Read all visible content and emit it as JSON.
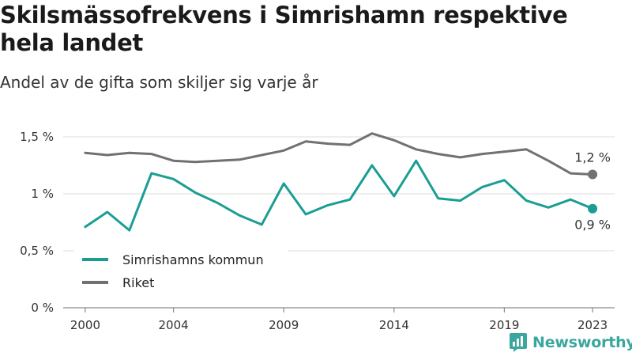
{
  "header": {
    "title": "Skilsmässofrekvens i Simrishamn respektive hela landet",
    "subtitle": "Andel av de gifta som skiljer sig varje år"
  },
  "logo": {
    "text": "Newsworthy",
    "icon": "bar-chart-icon"
  },
  "chart_data": {
    "type": "line",
    "title": "Skilsmässofrekvens i Simrishamn respektive hela landet",
    "subtitle": "Andel av de gifta som skiljer sig varje år",
    "xlabel": "",
    "ylabel": "",
    "x": [
      2000,
      2001,
      2002,
      2003,
      2004,
      2005,
      2006,
      2007,
      2008,
      2009,
      2010,
      2011,
      2012,
      2013,
      2014,
      2015,
      2016,
      2017,
      2018,
      2019,
      2020,
      2021,
      2022,
      2023
    ],
    "x_ticks": [
      2000,
      2004,
      2009,
      2014,
      2019,
      2023
    ],
    "x_tick_labels": [
      "2000",
      "2004",
      "2009",
      "2014",
      "2019",
      "2023"
    ],
    "xlim": [
      1999,
      2024
    ],
    "ylim": [
      0,
      1.5
    ],
    "y_ticks": [
      0,
      0.5,
      1,
      1.5
    ],
    "y_tick_labels": [
      "0 %",
      "0,5 %",
      "1 %",
      "1,5 %"
    ],
    "grid": "horizontal",
    "legend_position": "bottom-left",
    "series": [
      {
        "name": "Simrishamns kommun",
        "color": "#1a9e93",
        "end_label": "0,9 %",
        "values": [
          0.71,
          0.84,
          0.68,
          1.18,
          1.13,
          1.01,
          0.92,
          0.81,
          0.73,
          1.09,
          0.82,
          0.9,
          0.95,
          1.25,
          0.98,
          1.29,
          0.96,
          0.94,
          1.06,
          1.12,
          0.94,
          0.88,
          0.95,
          0.87
        ]
      },
      {
        "name": "Riket",
        "color": "#707075",
        "end_label": "1,2 %",
        "values": [
          1.36,
          1.34,
          1.36,
          1.35,
          1.29,
          1.28,
          1.29,
          1.3,
          1.34,
          1.38,
          1.46,
          1.44,
          1.43,
          1.53,
          1.47,
          1.39,
          1.35,
          1.32,
          1.35,
          1.37,
          1.39,
          1.29,
          1.18,
          1.17
        ]
      }
    ]
  }
}
